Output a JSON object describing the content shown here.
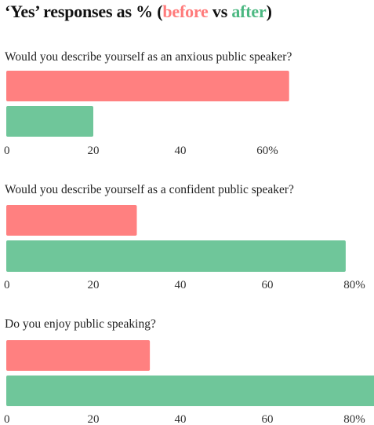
{
  "title": {
    "prefix": "‘Yes’ responses as % (",
    "before": "before",
    "vs": " vs ",
    "after": "after",
    "suffix": ")"
  },
  "colors": {
    "before": "#ff8080",
    "after": "#6fc69a"
  },
  "chart_data": [
    {
      "type": "bar",
      "orientation": "horizontal",
      "title": "Would you describe yourself as an anxious public speaker?",
      "series": [
        {
          "name": "before",
          "values": [
            65
          ]
        },
        {
          "name": "after",
          "values": [
            20
          ]
        }
      ],
      "xlim": [
        0,
        70
      ],
      "ticks": [
        0,
        20,
        40,
        60
      ],
      "tick_labels": [
        "0",
        "20",
        "40",
        "60%"
      ]
    },
    {
      "type": "bar",
      "orientation": "horizontal",
      "title": "Would you describe yourself as a confident public speaker?",
      "series": [
        {
          "name": "before",
          "values": [
            30
          ]
        },
        {
          "name": "after",
          "values": [
            78
          ]
        }
      ],
      "xlim": [
        0,
        85
      ],
      "ticks": [
        0,
        20,
        40,
        60,
        80
      ],
      "tick_labels": [
        "0",
        "20",
        "40",
        "60",
        "80%"
      ]
    },
    {
      "type": "bar",
      "orientation": "horizontal",
      "title": "Do you enjoy public speaking?",
      "series": [
        {
          "name": "before",
          "values": [
            33
          ]
        },
        {
          "name": "after",
          "values": [
            86
          ]
        }
      ],
      "xlim": [
        0,
        86
      ],
      "ticks": [
        0,
        20,
        40,
        60,
        80
      ],
      "tick_labels": [
        "0",
        "20",
        "40",
        "60",
        "80%"
      ]
    }
  ]
}
